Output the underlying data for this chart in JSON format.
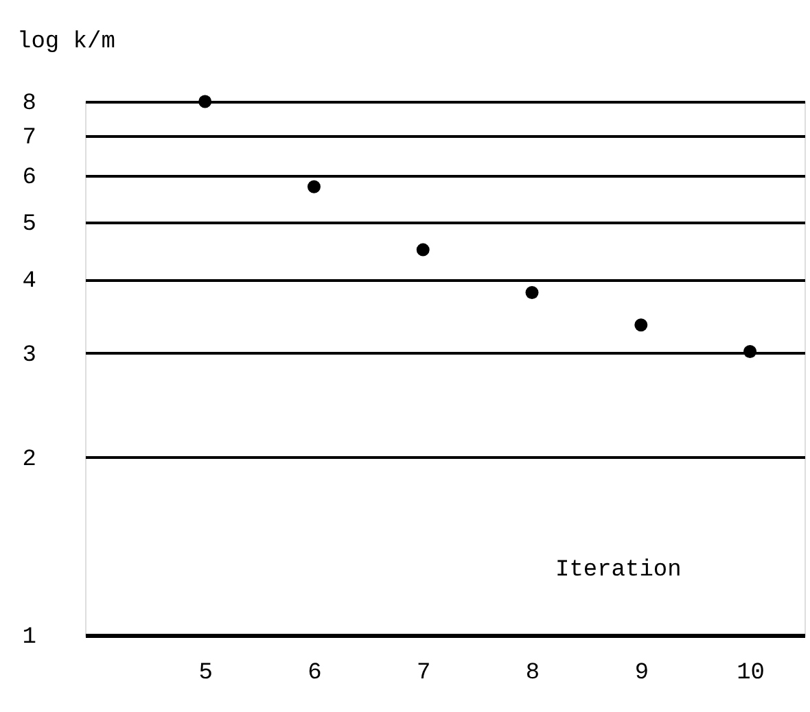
{
  "chart_data": {
    "type": "scatter",
    "xlabel": "Iteration",
    "ylabel": "log k/m",
    "x": [
      5,
      6,
      7,
      8,
      9,
      10
    ],
    "series": [
      {
        "color": "#000000",
        "values": [
          8,
          5.74,
          4.49,
          3.8,
          3.35,
          3.02
        ]
      }
    ],
    "xlim": [
      3.9,
      10.5
    ],
    "xticks": [
      5,
      6,
      7,
      8,
      9,
      10
    ],
    "ylim": [
      1,
      8
    ],
    "yticks": [
      1,
      2,
      3,
      4,
      5,
      6,
      7,
      8
    ],
    "log": "y",
    "grid": "y",
    "marker": "circle"
  }
}
